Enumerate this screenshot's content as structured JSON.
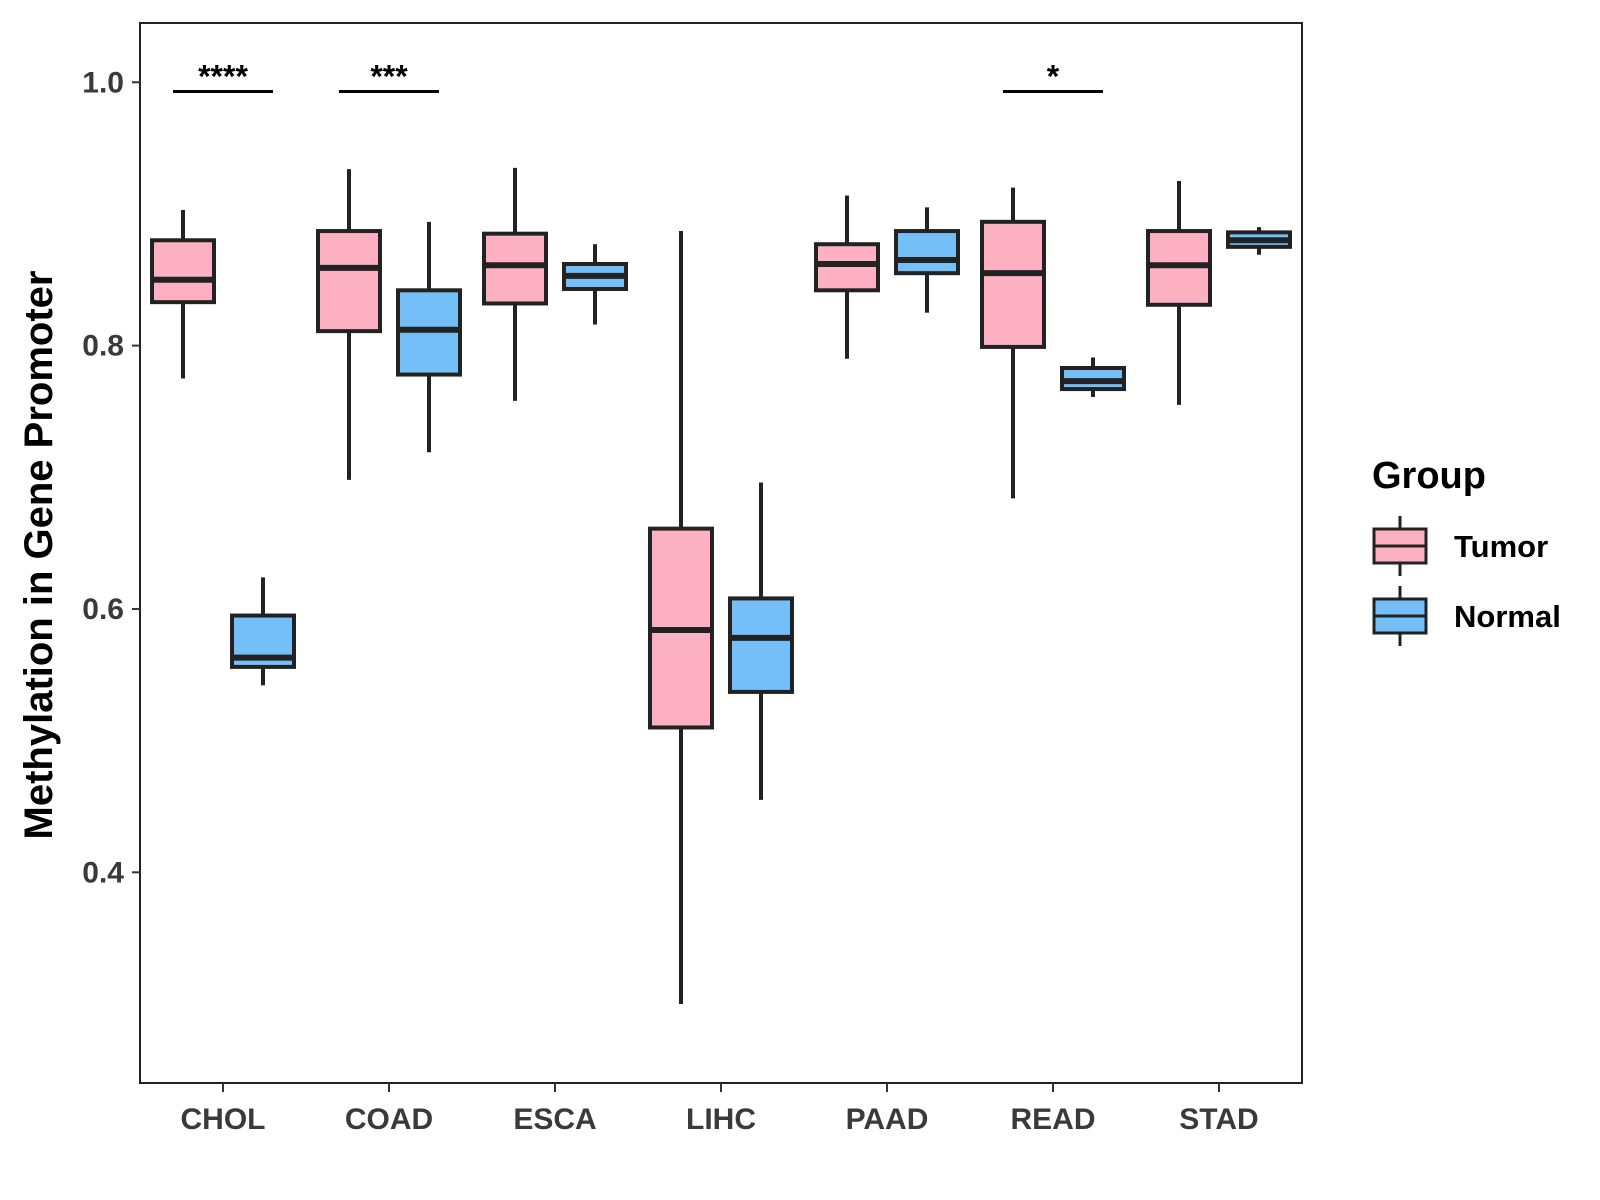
{
  "chart_data": {
    "type": "boxplot",
    "title": "",
    "xlabel": "",
    "ylabel": "Methylation in Gene Promoter",
    "ylim": [
      0.24,
      1.045
    ],
    "yticks": [
      "0.4",
      "0.6",
      "0.8",
      "1.0"
    ],
    "categories": [
      "CHOL",
      "COAD",
      "ESCA",
      "LIHC",
      "PAAD",
      "READ",
      "STAD"
    ],
    "colors": {
      "Tumor": "#FDB0C2",
      "Normal": "#74BFF8",
      "stroke": "#222222"
    },
    "legend": {
      "title": "Group",
      "position": "right"
    },
    "series": [
      {
        "name": "Tumor",
        "boxes": [
          {
            "whisker_low": 0.775,
            "q1": 0.833,
            "median": 0.85,
            "q3": 0.88,
            "whisker_high": 0.903
          },
          {
            "whisker_low": 0.698,
            "q1": 0.811,
            "median": 0.859,
            "q3": 0.887,
            "whisker_high": 0.934
          },
          {
            "whisker_low": 0.758,
            "q1": 0.832,
            "median": 0.861,
            "q3": 0.885,
            "whisker_high": 0.935
          },
          {
            "whisker_low": 0.3,
            "q1": 0.51,
            "median": 0.584,
            "q3": 0.661,
            "whisker_high": 0.887
          },
          {
            "whisker_low": 0.79,
            "q1": 0.842,
            "median": 0.862,
            "q3": 0.877,
            "whisker_high": 0.914
          },
          {
            "whisker_low": 0.684,
            "q1": 0.799,
            "median": 0.855,
            "q3": 0.894,
            "whisker_high": 0.92
          },
          {
            "whisker_low": 0.755,
            "q1": 0.831,
            "median": 0.861,
            "q3": 0.887,
            "whisker_high": 0.925
          }
        ]
      },
      {
        "name": "Normal",
        "boxes": [
          {
            "whisker_low": 0.542,
            "q1": 0.556,
            "median": 0.563,
            "q3": 0.595,
            "whisker_high": 0.624
          },
          {
            "whisker_low": 0.719,
            "q1": 0.778,
            "median": 0.812,
            "q3": 0.842,
            "whisker_high": 0.894
          },
          {
            "whisker_low": 0.816,
            "q1": 0.843,
            "median": 0.853,
            "q3": 0.862,
            "whisker_high": 0.877
          },
          {
            "whisker_low": 0.455,
            "q1": 0.537,
            "median": 0.578,
            "q3": 0.608,
            "whisker_high": 0.696
          },
          {
            "whisker_low": 0.825,
            "q1": 0.855,
            "median": 0.865,
            "q3": 0.887,
            "whisker_high": 0.905
          },
          {
            "whisker_low": 0.761,
            "q1": 0.767,
            "median": 0.773,
            "q3": 0.783,
            "whisker_high": 0.791
          },
          {
            "whisker_low": 0.869,
            "q1": 0.875,
            "median": 0.88,
            "q3": 0.886,
            "whisker_high": 0.89
          }
        ]
      }
    ],
    "significance": [
      {
        "category": "CHOL",
        "label": "****",
        "y": 0.993
      },
      {
        "category": "COAD",
        "label": "***",
        "y": 0.993
      },
      {
        "category": "READ",
        "label": "*",
        "y": 0.993
      }
    ]
  }
}
